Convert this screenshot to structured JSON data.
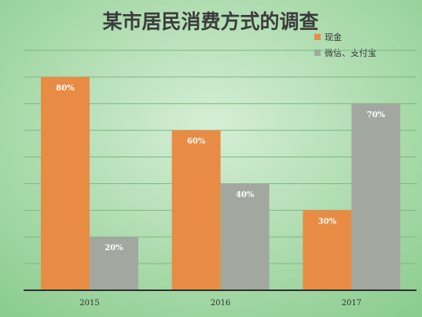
{
  "chart_data": {
    "type": "bar",
    "title": "某市居民消费方式的调查",
    "categories": [
      "2015",
      "2016",
      "2017"
    ],
    "series": [
      {
        "name": "现金",
        "values": [
          80,
          60,
          30
        ],
        "labels": [
          "80%",
          "60%",
          "30%"
        ],
        "color": "#e88c45"
      },
      {
        "name": "微信、支付宝",
        "values": [
          20,
          40,
          70
        ],
        "labels": [
          "20%",
          "40%",
          "70%"
        ],
        "color": "#a2a89f"
      }
    ],
    "ylim": [
      0,
      90
    ],
    "grid": true,
    "legend_position": "top-right",
    "background": {
      "outer": "#8ccd8f",
      "center": "#d6eed6"
    }
  }
}
